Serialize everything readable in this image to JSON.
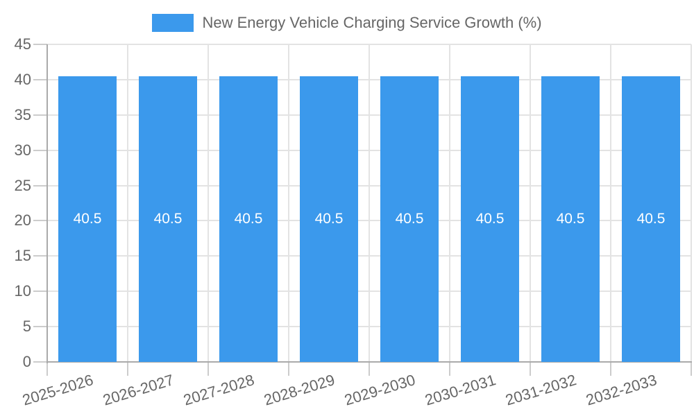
{
  "chart_data": {
    "type": "bar",
    "title": "New Energy Vehicle Charging Service Growth (%)",
    "categories": [
      "2025-2026",
      "2026-2027",
      "2027-2028",
      "2028-2029",
      "2029-2030",
      "2030-2031",
      "2031-2032",
      "2032-2033"
    ],
    "series": [
      {
        "name": "New Energy Vehicle Charging Service Growth (%)",
        "values": [
          40.5,
          40.5,
          40.5,
          40.5,
          40.5,
          40.5,
          40.5,
          40.5
        ]
      }
    ],
    "value_labels": [
      "40.5",
      "40.5",
      "40.5",
      "40.5",
      "40.5",
      "40.5",
      "40.5",
      "40.5"
    ],
    "xlabel": "",
    "ylabel": "",
    "ylim": [
      0,
      45
    ],
    "ytick_step": 5,
    "ytick_labels": [
      "0",
      "5",
      "10",
      "15",
      "20",
      "25",
      "30",
      "35",
      "40",
      "45"
    ],
    "grid": "on",
    "legend_position": "top-center",
    "x_tick_rotation_deg": -17,
    "colors": {
      "bar": "#3B99EC",
      "grid": "#E3E3E3",
      "axis": "#AAAAAA",
      "tick": "#CCCCCC",
      "label": "#666666",
      "value_label": "#FFFFFF"
    }
  }
}
